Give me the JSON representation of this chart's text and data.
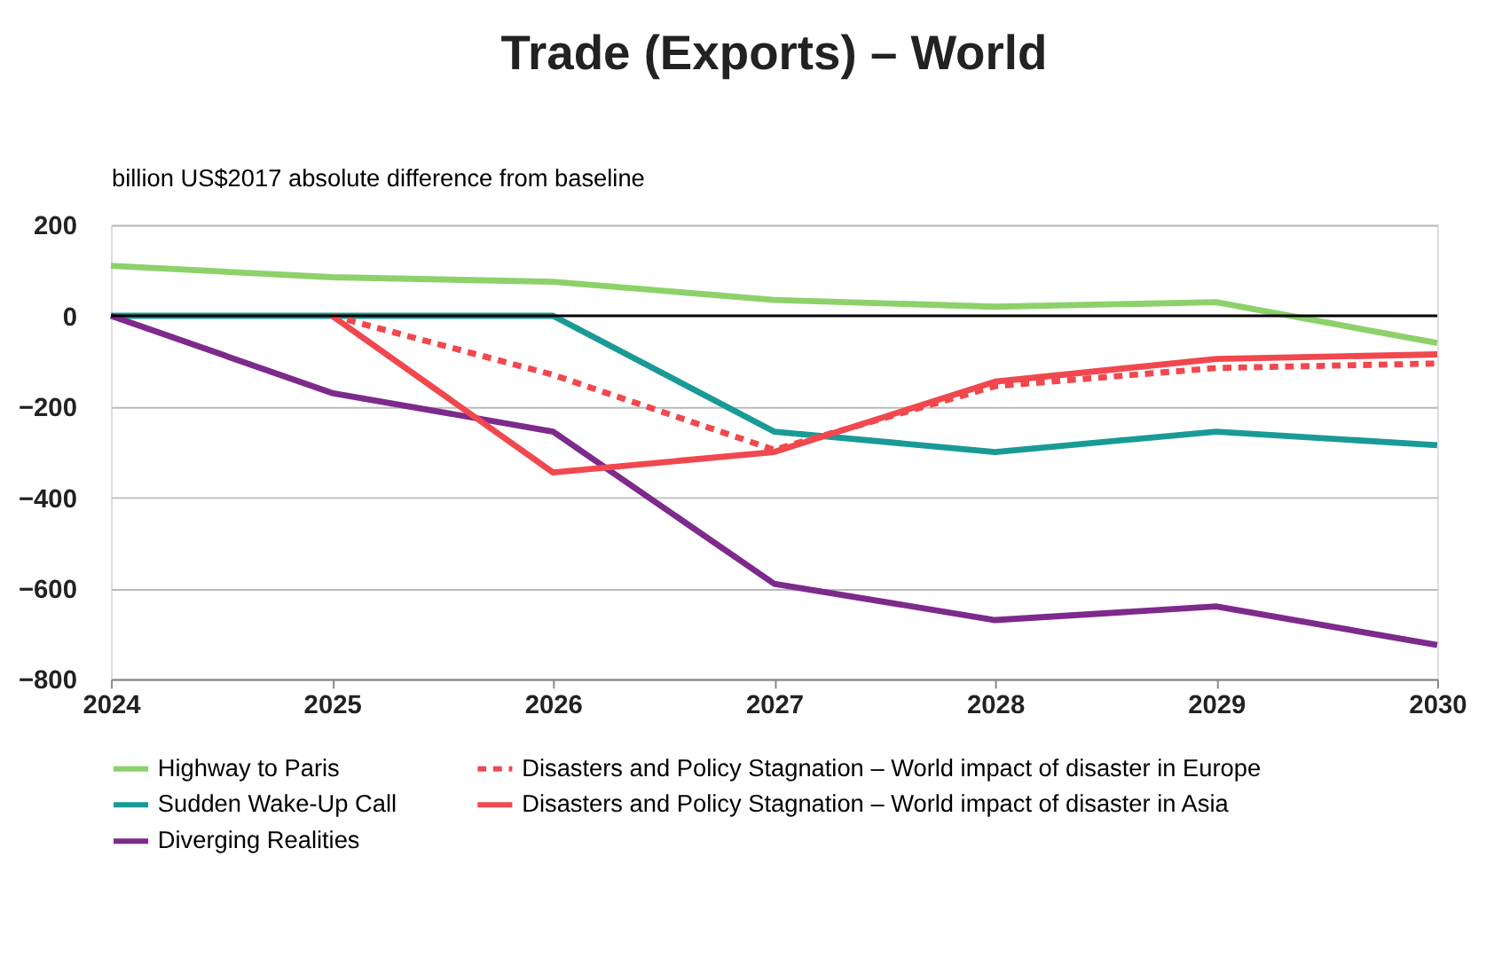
{
  "chart_data": {
    "type": "line",
    "title": "Trade (Exports) – World",
    "ylabel": "billion US$2017 absolute difference from baseline",
    "x": [
      2024,
      2025,
      2026,
      2027,
      2028,
      2029,
      2030
    ],
    "series": [
      {
        "name": "Highway to Paris",
        "color": "#8dd16b",
        "values": [
          110,
          85,
          75,
          35,
          20,
          30,
          -60
        ]
      },
      {
        "name": "Sudden Wake-Up Call",
        "color": "#1a9a96",
        "values": [
          0,
          0,
          0,
          -255,
          -300,
          -255,
          -285
        ]
      },
      {
        "name": "Diverging Realities",
        "color": "#7d2a8c",
        "values": [
          0,
          -170,
          -255,
          -590,
          -670,
          -640,
          -725
        ]
      },
      {
        "name": "Disasters and Policy Stagnation – World impact of disaster in Europe",
        "color": "#f0484e",
        "line_style": "dashed",
        "values": [
          null,
          0,
          -130,
          -295,
          -155,
          -115,
          -105
        ]
      },
      {
        "name": "Disasters and Policy Stagnation – World impact of disaster in Asia",
        "color": "#f0484e",
        "values": [
          null,
          0,
          -345,
          -300,
          -145,
          -95,
          -85
        ]
      }
    ],
    "xlim": [
      2024,
      2030
    ],
    "xticks": [
      2024,
      2025,
      2026,
      2027,
      2028,
      2029,
      2030
    ],
    "ylim": [
      -800,
      200
    ],
    "yticks": [
      -800,
      -600,
      -400,
      -200,
      0,
      200
    ],
    "ref_lines": [
      {
        "axis": "y",
        "value": 0,
        "color": "#000000"
      }
    ],
    "grid": "y",
    "legend": "bottom",
    "line_style": "solid",
    "marker": "none"
  }
}
